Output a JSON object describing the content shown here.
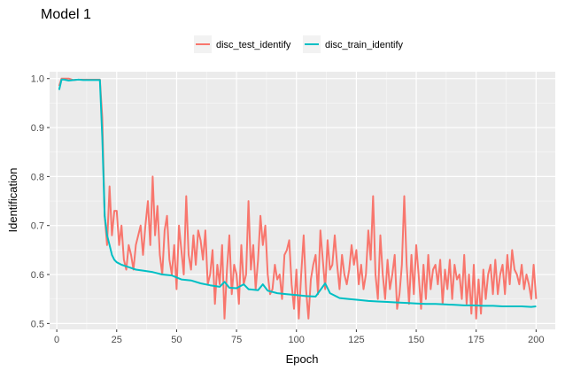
{
  "chart_data": {
    "type": "line",
    "title": "Model 1",
    "xlabel": "Epoch",
    "ylabel": "Identification",
    "xlim": [
      -3,
      208
    ],
    "ylim": [
      0.488,
      1.014
    ],
    "x_ticks": [
      0,
      25,
      50,
      75,
      100,
      125,
      150,
      175,
      200
    ],
    "y_ticks": [
      0.5,
      0.6,
      0.7,
      0.8,
      0.9,
      1.0
    ],
    "y_tick_labels": [
      "0.5",
      "0.6",
      "0.7",
      "0.8",
      "0.9",
      "1.0"
    ],
    "grid": true,
    "legend_position": "top",
    "series": [
      {
        "name": "disc_test_identify",
        "color": "#F8766D",
        "points": [
          [
            1,
            0.985
          ],
          [
            2,
            1.0
          ],
          [
            3,
            1.0
          ],
          [
            5,
            1.0
          ],
          [
            7,
            0.997
          ],
          [
            9,
            0.998
          ],
          [
            11,
            0.998
          ],
          [
            14,
            0.998
          ],
          [
            17,
            0.998
          ],
          [
            18,
            0.998
          ],
          [
            19,
            0.92
          ],
          [
            20,
            0.72
          ],
          [
            21,
            0.66
          ],
          [
            22,
            0.78
          ],
          [
            23,
            0.68
          ],
          [
            24,
            0.73
          ],
          [
            25,
            0.73
          ],
          [
            26,
            0.66
          ],
          [
            27,
            0.7
          ],
          [
            28,
            0.63
          ],
          [
            29,
            0.61
          ],
          [
            30,
            0.66
          ],
          [
            31,
            0.64
          ],
          [
            32,
            0.61
          ],
          [
            33,
            0.66
          ],
          [
            34,
            0.68
          ],
          [
            35,
            0.7
          ],
          [
            36,
            0.64
          ],
          [
            37,
            0.7
          ],
          [
            38,
            0.75
          ],
          [
            39,
            0.66
          ],
          [
            40,
            0.8
          ],
          [
            41,
            0.68
          ],
          [
            42,
            0.74
          ],
          [
            43,
            0.64
          ],
          [
            44,
            0.6
          ],
          [
            45,
            0.69
          ],
          [
            46,
            0.72
          ],
          [
            47,
            0.63
          ],
          [
            48,
            0.6
          ],
          [
            49,
            0.66
          ],
          [
            50,
            0.57
          ],
          [
            51,
            0.7
          ],
          [
            52,
            0.65
          ],
          [
            53,
            0.6
          ],
          [
            54,
            0.76
          ],
          [
            55,
            0.64
          ],
          [
            56,
            0.61
          ],
          [
            57,
            0.68
          ],
          [
            58,
            0.62
          ],
          [
            59,
            0.69
          ],
          [
            60,
            0.67
          ],
          [
            61,
            0.63
          ],
          [
            62,
            0.69
          ],
          [
            63,
            0.58
          ],
          [
            64,
            0.6
          ],
          [
            65,
            0.65
          ],
          [
            66,
            0.54
          ],
          [
            67,
            0.62
          ],
          [
            68,
            0.58
          ],
          [
            69,
            0.66
          ],
          [
            70,
            0.51
          ],
          [
            71,
            0.61
          ],
          [
            72,
            0.68
          ],
          [
            73,
            0.56
          ],
          [
            74,
            0.62
          ],
          [
            75,
            0.6
          ],
          [
            76,
            0.54
          ],
          [
            77,
            0.66
          ],
          [
            78,
            0.58
          ],
          [
            79,
            0.6
          ],
          [
            80,
            0.75
          ],
          [
            81,
            0.61
          ],
          [
            82,
            0.66
          ],
          [
            83,
            0.57
          ],
          [
            84,
            0.63
          ],
          [
            85,
            0.72
          ],
          [
            86,
            0.66
          ],
          [
            87,
            0.7
          ],
          [
            88,
            0.6
          ],
          [
            89,
            0.56
          ],
          [
            90,
            0.57
          ],
          [
            91,
            0.62
          ],
          [
            92,
            0.59
          ],
          [
            93,
            0.6
          ],
          [
            94,
            0.55
          ],
          [
            95,
            0.64
          ],
          [
            96,
            0.65
          ],
          [
            97,
            0.67
          ],
          [
            98,
            0.58
          ],
          [
            99,
            0.53
          ],
          [
            100,
            0.61
          ],
          [
            101,
            0.51
          ],
          [
            102,
            0.6
          ],
          [
            103,
            0.68
          ],
          [
            104,
            0.57
          ],
          [
            105,
            0.51
          ],
          [
            106,
            0.59
          ],
          [
            107,
            0.62
          ],
          [
            108,
            0.64
          ],
          [
            109,
            0.56
          ],
          [
            110,
            0.69
          ],
          [
            111,
            0.63
          ],
          [
            112,
            0.57
          ],
          [
            113,
            0.67
          ],
          [
            114,
            0.61
          ],
          [
            115,
            0.62
          ],
          [
            116,
            0.68
          ],
          [
            117,
            0.62
          ],
          [
            118,
            0.57
          ],
          [
            119,
            0.64
          ],
          [
            120,
            0.6
          ],
          [
            121,
            0.58
          ],
          [
            122,
            0.61
          ],
          [
            123,
            0.66
          ],
          [
            124,
            0.62
          ],
          [
            125,
            0.65
          ],
          [
            126,
            0.58
          ],
          [
            127,
            0.62
          ],
          [
            128,
            0.57
          ],
          [
            129,
            0.6
          ],
          [
            130,
            0.69
          ],
          [
            131,
            0.63
          ],
          [
            132,
            0.76
          ],
          [
            133,
            0.6
          ],
          [
            134,
            0.55
          ],
          [
            135,
            0.68
          ],
          [
            136,
            0.6
          ],
          [
            137,
            0.55
          ],
          [
            138,
            0.63
          ],
          [
            139,
            0.57
          ],
          [
            140,
            0.6
          ],
          [
            141,
            0.64
          ],
          [
            142,
            0.53
          ],
          [
            143,
            0.56
          ],
          [
            144,
            0.62
          ],
          [
            145,
            0.76
          ],
          [
            146,
            0.62
          ],
          [
            147,
            0.54
          ],
          [
            148,
            0.64
          ],
          [
            149,
            0.56
          ],
          [
            150,
            0.66
          ],
          [
            151,
            0.6
          ],
          [
            152,
            0.53
          ],
          [
            153,
            0.62
          ],
          [
            154,
            0.55
          ],
          [
            155,
            0.64
          ],
          [
            156,
            0.57
          ],
          [
            157,
            0.61
          ],
          [
            158,
            0.62
          ],
          [
            159,
            0.58
          ],
          [
            160,
            0.63
          ],
          [
            161,
            0.54
          ],
          [
            162,
            0.61
          ],
          [
            163,
            0.57
          ],
          [
            164,
            0.63
          ],
          [
            165,
            0.55
          ],
          [
            166,
            0.62
          ],
          [
            167,
            0.59
          ],
          [
            168,
            0.6
          ],
          [
            169,
            0.55
          ],
          [
            170,
            0.64
          ],
          [
            171,
            0.54
          ],
          [
            172,
            0.6
          ],
          [
            173,
            0.52
          ],
          [
            174,
            0.62
          ],
          [
            175,
            0.51
          ],
          [
            176,
            0.59
          ],
          [
            177,
            0.52
          ],
          [
            178,
            0.61
          ],
          [
            179,
            0.55
          ],
          [
            180,
            0.6
          ],
          [
            181,
            0.62
          ],
          [
            182,
            0.56
          ],
          [
            183,
            0.63
          ],
          [
            184,
            0.56
          ],
          [
            185,
            0.6
          ],
          [
            186,
            0.62
          ],
          [
            187,
            0.56
          ],
          [
            188,
            0.64
          ],
          [
            189,
            0.58
          ],
          [
            190,
            0.65
          ],
          [
            191,
            0.61
          ],
          [
            192,
            0.6
          ],
          [
            193,
            0.58
          ],
          [
            194,
            0.62
          ],
          [
            195,
            0.57
          ],
          [
            196,
            0.6
          ],
          [
            197,
            0.58
          ],
          [
            198,
            0.55
          ],
          [
            199,
            0.62
          ],
          [
            200,
            0.55
          ]
        ]
      },
      {
        "name": "disc_train_identify",
        "color": "#00BFC4",
        "points": [
          [
            1,
            0.977
          ],
          [
            2,
            0.998
          ],
          [
            3,
            0.998
          ],
          [
            5,
            0.996
          ],
          [
            7,
            0.997
          ],
          [
            9,
            0.998
          ],
          [
            11,
            0.997
          ],
          [
            14,
            0.997
          ],
          [
            17,
            0.997
          ],
          [
            18,
            0.997
          ],
          [
            19,
            0.88
          ],
          [
            20,
            0.72
          ],
          [
            21,
            0.68
          ],
          [
            22,
            0.66
          ],
          [
            23,
            0.64
          ],
          [
            24,
            0.63
          ],
          [
            25,
            0.625
          ],
          [
            27,
            0.62
          ],
          [
            30,
            0.615
          ],
          [
            33,
            0.61
          ],
          [
            36,
            0.608
          ],
          [
            40,
            0.605
          ],
          [
            44,
            0.6
          ],
          [
            48,
            0.598
          ],
          [
            52,
            0.59
          ],
          [
            56,
            0.588
          ],
          [
            60,
            0.582
          ],
          [
            64,
            0.578
          ],
          [
            68,
            0.575
          ],
          [
            70,
            0.585
          ],
          [
            72,
            0.573
          ],
          [
            75,
            0.572
          ],
          [
            78,
            0.58
          ],
          [
            80,
            0.57
          ],
          [
            84,
            0.568
          ],
          [
            86,
            0.58
          ],
          [
            88,
            0.567
          ],
          [
            92,
            0.562
          ],
          [
            96,
            0.56
          ],
          [
            100,
            0.558
          ],
          [
            104,
            0.556
          ],
          [
            108,
            0.555
          ],
          [
            112,
            0.582
          ],
          [
            114,
            0.562
          ],
          [
            118,
            0.552
          ],
          [
            122,
            0.55
          ],
          [
            126,
            0.548
          ],
          [
            130,
            0.546
          ],
          [
            134,
            0.545
          ],
          [
            138,
            0.544
          ],
          [
            142,
            0.543
          ],
          [
            146,
            0.542
          ],
          [
            150,
            0.541
          ],
          [
            154,
            0.54
          ],
          [
            158,
            0.54
          ],
          [
            162,
            0.539
          ],
          [
            166,
            0.538
          ],
          [
            170,
            0.537
          ],
          [
            174,
            0.537
          ],
          [
            178,
            0.536
          ],
          [
            182,
            0.536
          ],
          [
            186,
            0.535
          ],
          [
            190,
            0.535
          ],
          [
            194,
            0.535
          ],
          [
            198,
            0.534
          ],
          [
            200,
            0.535
          ]
        ]
      }
    ]
  }
}
